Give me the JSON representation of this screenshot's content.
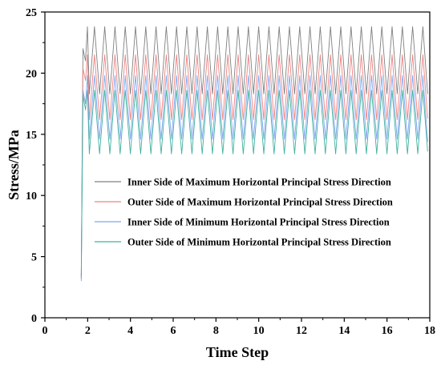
{
  "chart_data": {
    "type": "line",
    "xlabel": "Time Step",
    "ylabel": "Stress/MPa",
    "xlim": [
      0,
      18
    ],
    "ylim": [
      0,
      25
    ],
    "xticks": [
      "0",
      "2",
      "4",
      "6",
      "8",
      "10",
      "12",
      "14",
      "16",
      "18"
    ],
    "yticks": [
      "0",
      "5",
      "10",
      "15",
      "20",
      "25"
    ],
    "grid": false,
    "legend_position": "center-right",
    "period": 0.48,
    "series": [
      {
        "name": "Inner Side of Maximum Horizontal Principal Stress Direction",
        "color": "#808080",
        "start": [
          [
            1.7,
            3.2
          ],
          [
            1.78,
            22.0
          ],
          [
            1.9,
            21.0
          ]
        ],
        "cycle_x_start": 1.9,
        "cycle_x_end": 17.9,
        "min": 18.3,
        "max": 23.8,
        "phase": 0.37,
        "end_y": 18.3
      },
      {
        "name": "Outer Side of Maximum Horizontal Principal Stress Direction",
        "color": "#f08080",
        "start": [
          [
            1.7,
            3.2
          ],
          [
            1.78,
            20.4
          ],
          [
            1.9,
            19.4
          ]
        ],
        "cycle_x_start": 1.9,
        "cycle_x_end": 17.9,
        "min": 16.2,
        "max": 21.5,
        "phase": 0.37,
        "end_y": 16.3
      },
      {
        "name": "Inner Side of Minimum Horizontal Principal Stress Direction",
        "color": "#7fa7f0",
        "start": [
          [
            1.7,
            3.0
          ],
          [
            1.78,
            18.6
          ],
          [
            1.9,
            17.5
          ]
        ],
        "cycle_x_start": 1.9,
        "cycle_x_end": 17.9,
        "min": 14.6,
        "max": 19.8,
        "phase": 0.37,
        "end_y": 14.4
      },
      {
        "name": "Outer Side of Minimum Horizontal Principal Stress Direction",
        "color": "#40b0a0",
        "start": [
          [
            1.7,
            3.4
          ],
          [
            1.78,
            18.2
          ],
          [
            1.9,
            17.0
          ]
        ],
        "cycle_x_start": 1.9,
        "cycle_x_end": 17.9,
        "min": 13.4,
        "max": 18.6,
        "phase": 0.37,
        "end_y": 13.6
      }
    ]
  }
}
